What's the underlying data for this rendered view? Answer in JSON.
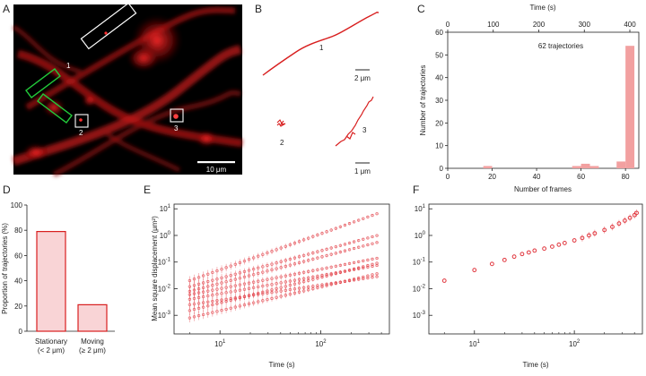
{
  "panels": {
    "A": {
      "letter": "A",
      "roi_labels": [
        "1",
        "2",
        "3"
      ],
      "scale_bar": "10 μm",
      "box_colors": {
        "white": "#ffffff",
        "green": "#22c93a"
      }
    },
    "B": {
      "letter": "B",
      "track_labels": [
        "1",
        "2",
        "3"
      ],
      "scale_bar_top": "2 μm",
      "scale_bar_bottom": "1 μm",
      "track_color": "#d81e1e"
    },
    "C": {
      "letter": "C",
      "annotation": "62 trajectories",
      "chart_data": {
        "type": "bar",
        "xlabel": "Number of frames",
        "ylabel": "Number of trajectories",
        "top_axis_label": "Time (s)",
        "xlim": [
          0,
          86
        ],
        "ylim": [
          0,
          60
        ],
        "x_ticks": [
          "0",
          "20",
          "40",
          "60",
          "80"
        ],
        "y_ticks": [
          "0",
          "10",
          "20",
          "30",
          "40",
          "50",
          "60"
        ],
        "top_ticks": [
          "0",
          "100",
          "200",
          "300",
          "400"
        ],
        "bins": [
          {
            "x_start": 16,
            "x_end": 20,
            "count": 1
          },
          {
            "x_start": 56,
            "x_end": 60,
            "count": 1
          },
          {
            "x_start": 60,
            "x_end": 64,
            "count": 2
          },
          {
            "x_start": 64,
            "x_end": 68,
            "count": 1
          },
          {
            "x_start": 76,
            "x_end": 80,
            "count": 3
          },
          {
            "x_start": 80,
            "x_end": 84,
            "count": 54
          }
        ],
        "bar_color": "#f2a0a0"
      }
    },
    "D": {
      "letter": "D",
      "chart_data": {
        "type": "bar",
        "ylabel": "Proportion of trajectories (%)",
        "ylim": [
          0,
          100
        ],
        "y_ticks": [
          "0",
          "20",
          "40",
          "60",
          "80",
          "100"
        ],
        "categories": [
          {
            "line1": "Stationary",
            "line2": "(< 2 μm)",
            "value": 79
          },
          {
            "line1": "Moving",
            "line2": "(≥ 2 μm)",
            "value": 21
          }
        ],
        "fill": "#f9d4d6",
        "stroke": "#d81e1e"
      }
    },
    "E": {
      "letter": "E",
      "chart_data": {
        "type": "scatter",
        "xlabel": "Time (s)",
        "ylabel": "Mean square displacement (μm²)",
        "x_scale": "log",
        "y_scale": "log",
        "xlim": [
          3.5,
          480
        ],
        "ylim": [
          0.0002,
          15
        ],
        "x_ticks": [
          {
            "base": "10",
            "exp": "1"
          },
          {
            "base": "10",
            "exp": "2"
          }
        ],
        "y_ticks": [
          {
            "base": "10",
            "exp": "-3"
          },
          {
            "base": "10",
            "exp": "-2"
          },
          {
            "base": "10",
            "exp": "-1"
          },
          {
            "base": "10",
            "exp": "0"
          },
          {
            "base": "10",
            "exp": "1"
          }
        ],
        "series": [
          {
            "start": 0.02,
            "end": 7.5,
            "slope": 1.2
          },
          {
            "start": 0.012,
            "end": 1.1,
            "slope": 0.95
          },
          {
            "start": 0.008,
            "end": 0.6,
            "slope": 0.9
          },
          {
            "start": 0.006,
            "end": 0.15,
            "slope": 0.75
          },
          {
            "start": 0.004,
            "end": 0.08,
            "slope": 0.7
          },
          {
            "start": 0.0025,
            "end": 0.03,
            "slope": 0.55
          },
          {
            "start": 0.0015,
            "end": 0.1,
            "slope": 0.9
          },
          {
            "start": 0.0008,
            "end": 0.04,
            "slope": 0.8
          }
        ],
        "color": "#e0343c"
      }
    },
    "F": {
      "letter": "F",
      "chart_data": {
        "type": "scatter",
        "xlabel": "Time (s)",
        "x_scale": "log",
        "y_scale": "log",
        "xlim": [
          3.5,
          480
        ],
        "ylim": [
          0.0002,
          15
        ],
        "x_ticks": [
          {
            "base": "10",
            "exp": "1"
          },
          {
            "base": "10",
            "exp": "2"
          }
        ],
        "y_ticks": [
          {
            "base": "10",
            "exp": "-3"
          },
          {
            "base": "10",
            "exp": "-2"
          },
          {
            "base": "10",
            "exp": "-1"
          },
          {
            "base": "10",
            "exp": "0"
          },
          {
            "base": "10",
            "exp": "1"
          }
        ],
        "x": [
          5,
          10,
          15,
          20,
          25,
          30,
          35,
          40,
          50,
          60,
          70,
          80,
          100,
          120,
          140,
          160,
          200,
          240,
          280,
          320,
          360,
          400,
          420
        ],
        "y": [
          0.02,
          0.05,
          0.085,
          0.12,
          0.16,
          0.2,
          0.23,
          0.27,
          0.32,
          0.38,
          0.45,
          0.52,
          0.65,
          0.8,
          1.0,
          1.2,
          1.6,
          2.1,
          2.8,
          3.6,
          4.6,
          5.8,
          7.0
        ],
        "color": "#e0343c"
      }
    }
  }
}
